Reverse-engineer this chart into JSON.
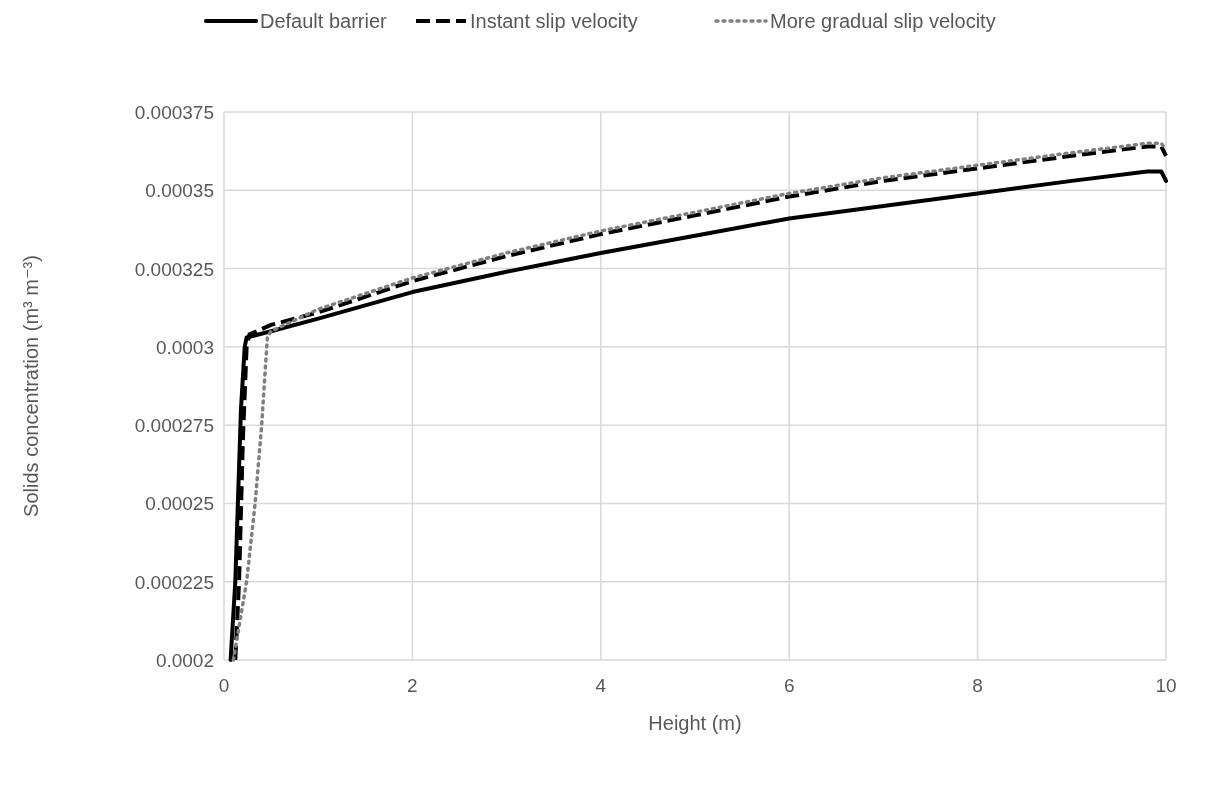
{
  "chart_data": {
    "type": "line",
    "xlabel": "Height (m)",
    "ylabel": "Solids concentration (m³ m⁻³)",
    "xlim": [
      0,
      10
    ],
    "xticks": [
      0,
      2,
      4,
      6,
      8,
      10
    ],
    "ylim": [
      0.0002,
      0.000375
    ],
    "yticks": [
      0.0002,
      0.000225,
      0.00025,
      0.000275,
      0.0003,
      0.000325,
      0.00035,
      0.000375
    ],
    "grid": true,
    "legend": "top",
    "marker": "none",
    "series": [
      {
        "name": "Default barrier",
        "color": "#000000",
        "line_style": "solid",
        "x": [
          0.07,
          0.12,
          0.18,
          0.22,
          0.24,
          0.5,
          1,
          2,
          3,
          4,
          5,
          6,
          7,
          8,
          9,
          9.8,
          9.95,
          10
        ],
        "values": [
          0.0002,
          0.000225,
          0.00028,
          0.0003,
          0.000303,
          0.000305,
          0.000309,
          0.0003175,
          0.000324,
          0.00033,
          0.0003355,
          0.000341,
          0.000345,
          0.000349,
          0.000353,
          0.000356,
          0.000356,
          0.000353
        ]
      },
      {
        "name": "Instant slip velocity",
        "color": "#000000",
        "line_style": "dashed",
        "x": [
          0.12,
          0.16,
          0.2,
          0.24,
          0.27,
          0.5,
          1,
          2,
          3,
          4,
          5,
          6,
          7,
          8,
          9,
          9.8,
          9.95,
          10
        ],
        "values": [
          0.0002,
          0.000225,
          0.00027,
          0.0003,
          0.000304,
          0.000307,
          0.000311,
          0.000321,
          0.000329,
          0.000336,
          0.000342,
          0.000348,
          0.000353,
          0.000357,
          0.000361,
          0.000364,
          0.000364,
          0.000361
        ]
      },
      {
        "name": "More gradual slip velocity",
        "color": "#808080",
        "line_style": "dotted",
        "x": [
          0.1,
          0.24,
          0.33,
          0.4,
          0.46,
          0.5,
          1,
          2,
          3,
          4,
          5,
          6,
          7,
          8,
          9,
          9.8,
          9.95,
          10
        ],
        "values": [
          0.0002,
          0.000225,
          0.00025,
          0.000275,
          0.000303,
          0.000305,
          0.000312,
          0.000322,
          0.00033,
          0.000337,
          0.000343,
          0.000349,
          0.000354,
          0.000358,
          0.000362,
          0.000365,
          0.000365,
          0.000363
        ]
      }
    ]
  }
}
